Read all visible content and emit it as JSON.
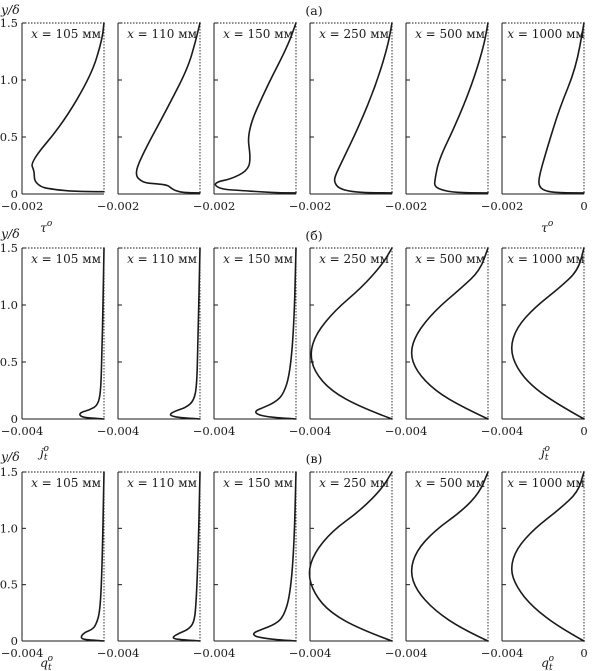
{
  "chart_data": [
    {
      "type": "line",
      "panel_label": "(а)",
      "ylabel": "y/δ",
      "xlabel": "τ^o",
      "xlabel_base": "τ",
      "xlabel_sup": "o",
      "xlabel_sub": "",
      "x_tick_left": "−0.002",
      "x_tick_right": "0",
      "xlim": [
        -0.002,
        0
      ],
      "ylim": [
        0,
        1.5
      ],
      "yticks": [
        "0",
        "0.5",
        "1.0",
        "1.5"
      ],
      "subplots": [
        {
          "title": "x = 105 мм",
          "series": [
            {
              "x": [
                0,
                -0.0004,
                -0.001,
                -0.0014,
                -0.0015,
                -0.0016,
                -0.0017,
                -0.0017,
                -0.0018,
                -0.001,
                -0.0003,
                -5e-05,
                0
              ],
              "y": [
                0.02,
                0.02,
                0.03,
                0.05,
                0.06,
                0.08,
                0.12,
                0.2,
                0.28,
                0.62,
                1.05,
                1.35,
                1.5
              ]
            }
          ]
        },
        {
          "title": "x = 110 мм",
          "series": [
            {
              "x": [
                0,
                -0.0004,
                -0.0006,
                -0.0007,
                -0.0008,
                -0.0011,
                -0.0014,
                -0.0016,
                -0.0014,
                -0.0008,
                -0.0003,
                -0.0001,
                0
              ],
              "y": [
                0.01,
                0.01,
                0.03,
                0.05,
                0.08,
                0.09,
                0.1,
                0.17,
                0.35,
                0.75,
                1.1,
                1.35,
                1.5
              ]
            }
          ]
        },
        {
          "title": "x = 150 мм",
          "series": [
            {
              "x": [
                0,
                -0.0004,
                -0.0009,
                -0.0013,
                -0.0018,
                -0.002,
                -0.0019,
                -0.0016,
                -0.0012,
                -0.0011,
                -0.0012,
                -0.0007,
                -0.0002,
                0
              ],
              "y": [
                0.01,
                0.01,
                0.02,
                0.03,
                0.04,
                0.08,
                0.11,
                0.13,
                0.2,
                0.3,
                0.55,
                0.95,
                1.3,
                1.5
              ]
            }
          ]
        },
        {
          "title": "x = 250 мм",
          "series": [
            {
              "x": [
                0,
                -0.0005,
                -0.001,
                -0.0013,
                -0.0014,
                -0.0014,
                -0.0012,
                -0.0008,
                -0.0004,
                -0.0001,
                0
              ],
              "y": [
                0.01,
                0.01,
                0.02,
                0.05,
                0.1,
                0.15,
                0.3,
                0.6,
                0.95,
                1.3,
                1.5
              ]
            }
          ]
        },
        {
          "title": "x = 500 мм",
          "series": [
            {
              "x": [
                0,
                -0.0005,
                -0.001,
                -0.0013,
                -0.0013,
                -0.0012,
                -0.0008,
                -0.0004,
                -0.0001,
                0
              ],
              "y": [
                0.01,
                0.01,
                0.02,
                0.06,
                0.12,
                0.3,
                0.6,
                0.95,
                1.3,
                1.5
              ]
            }
          ]
        },
        {
          "title": "x = 1000 мм",
          "series": [
            {
              "x": [
                0,
                -0.0005,
                -0.0009,
                -0.0011,
                -0.0011,
                -0.0009,
                -0.0006,
                -0.0002,
                0
              ],
              "y": [
                0.01,
                0.01,
                0.02,
                0.06,
                0.15,
                0.4,
                0.75,
                1.1,
                1.5
              ]
            }
          ]
        }
      ]
    },
    {
      "type": "line",
      "panel_label": "(б)",
      "ylabel": "y/δ",
      "xlabel": "j_t^o",
      "xlabel_base": "j",
      "xlabel_sup": "o",
      "xlabel_sub": "t",
      "x_tick_left": "−0.004",
      "x_tick_right": "0",
      "xlim": [
        -0.004,
        0
      ],
      "ylim": [
        0,
        1.5
      ],
      "yticks": [
        "0",
        "0.5",
        "1.0",
        "1.5"
      ],
      "subplots": [
        {
          "title": "x = 105 мм",
          "series": [
            {
              "x": [
                0,
                -0.0008,
                -0.0011,
                -0.0012,
                -0.0011,
                -0.0007,
                -0.0003,
                -0.00015,
                -0.0001,
                -5e-05,
                0
              ],
              "y": [
                0.0,
                0.01,
                0.02,
                0.04,
                0.06,
                0.08,
                0.12,
                0.25,
                0.6,
                1.0,
                1.5
              ]
            }
          ]
        },
        {
          "title": "x = 110 мм",
          "series": [
            {
              "x": [
                0,
                -0.0008,
                -0.0013,
                -0.0015,
                -0.0012,
                -0.0007,
                -0.0003,
                -0.00015,
                -0.0001,
                0
              ],
              "y": [
                0.0,
                0.01,
                0.02,
                0.04,
                0.07,
                0.1,
                0.16,
                0.3,
                0.7,
                1.5
              ]
            }
          ]
        },
        {
          "title": "x = 150 мм",
          "series": [
            {
              "x": [
                0,
                -0.0008,
                -0.0014,
                -0.0019,
                -0.002,
                -0.0016,
                -0.001,
                -0.0006,
                -0.0003,
                -0.0001,
                0
              ],
              "y": [
                0.0,
                0.01,
                0.02,
                0.04,
                0.07,
                0.1,
                0.15,
                0.22,
                0.4,
                0.8,
                1.5
              ]
            }
          ]
        },
        {
          "title": "x = 250 мм",
          "series": [
            {
              "x": [
                0,
                -0.0015,
                -0.003,
                -0.0038,
                -0.004,
                -0.0037,
                -0.0028,
                -0.0015,
                -0.0005,
                0
              ],
              "y": [
                0.0,
                0.1,
                0.25,
                0.42,
                0.58,
                0.75,
                0.95,
                1.15,
                1.35,
                1.5
              ]
            }
          ]
        },
        {
          "title": "x = 500 мм",
          "series": [
            {
              "x": [
                0,
                -0.0012,
                -0.0026,
                -0.0035,
                -0.0038,
                -0.0035,
                -0.0026,
                -0.0013,
                -0.0004,
                0
              ],
              "y": [
                0.0,
                0.1,
                0.25,
                0.42,
                0.58,
                0.75,
                0.95,
                1.15,
                1.3,
                1.5
              ]
            }
          ]
        },
        {
          "title": "x = 1000 мм",
          "series": [
            {
              "x": [
                0,
                -0.0012,
                -0.0025,
                -0.0033,
                -0.0036,
                -0.0033,
                -0.0024,
                -0.0012,
                -0.0003,
                0
              ],
              "y": [
                0.0,
                0.12,
                0.28,
                0.45,
                0.62,
                0.8,
                0.98,
                1.15,
                1.3,
                1.5
              ]
            }
          ]
        }
      ]
    },
    {
      "type": "line",
      "panel_label": "(в)",
      "ylabel": "y/δ",
      "xlabel": "q_t^o",
      "xlabel_base": "q",
      "xlabel_sup": "o",
      "xlabel_sub": "t",
      "x_tick_left": "−0.004",
      "x_tick_right": "0",
      "xlim": [
        -0.004,
        0
      ],
      "ylim": [
        0,
        1.5
      ],
      "yticks": [
        "0",
        "0.5",
        "1.0",
        "1.5"
      ],
      "subplots": [
        {
          "title": "x = 105 мм",
          "series": [
            {
              "x": [
                0,
                -0.0008,
                -0.0011,
                -0.0011,
                -0.0009,
                -0.0006,
                -0.0004,
                -0.0002,
                -0.0001,
                0
              ],
              "y": [
                0.0,
                0.01,
                0.02,
                0.05,
                0.08,
                0.1,
                0.14,
                0.25,
                0.6,
                1.5
              ]
            }
          ]
        },
        {
          "title": "x = 110 мм",
          "series": [
            {
              "x": [
                0,
                -0.0008,
                -0.0013,
                -0.0013,
                -0.001,
                -0.0006,
                -0.0003,
                -0.0002,
                -0.0001,
                0
              ],
              "y": [
                0.0,
                0.01,
                0.02,
                0.04,
                0.07,
                0.1,
                0.16,
                0.3,
                0.7,
                1.5
              ]
            }
          ]
        },
        {
          "title": "x = 150 мм",
          "series": [
            {
              "x": [
                0,
                -0.0008,
                -0.0014,
                -0.002,
                -0.0021,
                -0.0017,
                -0.001,
                -0.0006,
                -0.0003,
                -0.0001,
                0
              ],
              "y": [
                0.0,
                0.01,
                0.02,
                0.04,
                0.07,
                0.1,
                0.15,
                0.22,
                0.4,
                0.8,
                1.5
              ]
            }
          ]
        },
        {
          "title": "x = 250 мм",
          "series": [
            {
              "x": [
                0,
                -0.0015,
                -0.003,
                -0.0038,
                -0.0041,
                -0.0038,
                -0.0029,
                -0.0016,
                -0.0005,
                0
              ],
              "y": [
                0.0,
                0.1,
                0.25,
                0.42,
                0.6,
                0.78,
                0.98,
                1.15,
                1.35,
                1.5
              ]
            }
          ]
        },
        {
          "title": "x = 500 мм",
          "series": [
            {
              "x": [
                0,
                -0.0012,
                -0.0026,
                -0.0035,
                -0.0038,
                -0.0035,
                -0.0026,
                -0.0013,
                -0.0004,
                0
              ],
              "y": [
                0.0,
                0.1,
                0.27,
                0.45,
                0.62,
                0.8,
                0.98,
                1.15,
                1.32,
                1.5
              ]
            }
          ]
        },
        {
          "title": "x = 1000 мм",
          "series": [
            {
              "x": [
                0,
                -0.0012,
                -0.0025,
                -0.0033,
                -0.0036,
                -0.0033,
                -0.0024,
                -0.0012,
                -0.0003,
                0
              ],
              "y": [
                0.0,
                0.12,
                0.3,
                0.48,
                0.64,
                0.82,
                1.0,
                1.17,
                1.32,
                1.5
              ]
            }
          ]
        }
      ]
    }
  ]
}
